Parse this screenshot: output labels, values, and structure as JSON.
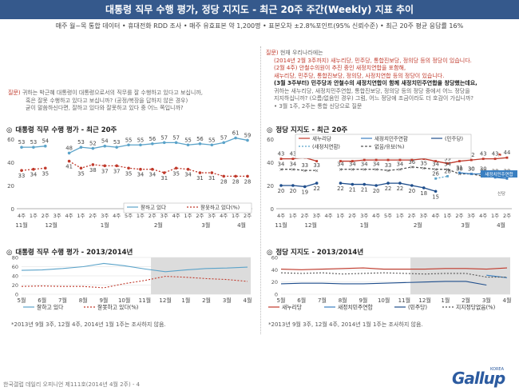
{
  "header": {
    "title": "대통령 직무 수행 평가, 정당 지지도 - 최근 20주 주간(Weekly) 지표 추이"
  },
  "subtitle": "매주 월~목 통합 데이터 • 휴대전화 RDD 조사 • 매주 유효표본 약 1,200명 • 표본오차 ±2.8%포인트(95% 신뢰수준) • 최근 20주 평균 응답률 16%",
  "left_question": {
    "tag": "질문)",
    "lines": [
      "귀하는 박근혜 대통령이 대통령으로서의 직무를 잘 수행하고 있다고 보십니까,",
      "혹은 잘못 수행하고 있다고 보십니까? (공정/복장을 답하지 않은 경우)",
      "굳이 말씀하신다면, 잘하고 있다와 잘못하고 있다 중 어느 쪽입니까?"
    ]
  },
  "right_question": {
    "tag": "질문)",
    "lines": [
      {
        "text": "현재 우리나라에는",
        "style": "normal"
      },
      {
        "text": "(2014년 2월 3주까지) 새누리당, 민주당, 통합진보당, 정의당 등의 정당이 있습니다.",
        "style": "red"
      },
      {
        "text": "(2월 4주) 안철수의원이 추진 중인 새정치연합을 포함해,",
        "style": "red"
      },
      {
        "text": "새누리당, 민주당, 통합진보당, 정의당, 사정치연합 등의 정당이 있습니다.",
        "style": "red"
      },
      {
        "text": "(3월 3주부터) 민주당과 안철수의 새정치연합이 함께 새정치민주연합을 창당했는데요,",
        "style": "dark"
      },
      {
        "text": "귀하는 새누리당, 새정치민주연합, 통합진보당, 정의당 등의 정당 중에서 어느 정당을",
        "style": "normal"
      },
      {
        "text": "지지하십니까? (으름/없음인 경우) 그럼, 어느 정당에 조금이라도 더 호감이 가십니까?",
        "style": "normal"
      },
      {
        "text": "• 3월 1주, 2주는 통합 신당으로 질문",
        "style": "normal"
      }
    ]
  },
  "left_top": {
    "title": "대통령 직무 수행 평가 - 최근 20주",
    "marker": "◎",
    "legend": [
      "잘하고 있다",
      "잘못하고 있다(%)"
    ]
  },
  "right_top": {
    "title": "정당 지지도 - 최근 20주",
    "marker": "◎",
    "legend": [
      "새누리당",
      "새정치민주연합",
      "(민주당)",
      "(새정치연합)",
      "없음/유보(%)"
    ],
    "annotation": "새정치민주연합",
    "flag_label": "신당"
  },
  "left_bottom": {
    "title": "대통령 직무 수행 평가 - 2013/2014년",
    "marker": "◎",
    "legend": [
      "잘하고 있다",
      "잘못하고 있다(%)"
    ],
    "note": "*2013년 9월 3주, 12월 4주, 2014년 1월 1주는 조사하지 않음."
  },
  "right_bottom": {
    "title": "정당 지지도 - 2013/2014년",
    "marker": "◎",
    "legend": [
      "새누리당",
      "새정치민주연합",
      "(민주당)",
      "지지정당없음(%)"
    ],
    "note": "*2013년 9월 3주, 12월 4주, 2014년 1월 1주는 조사하지 않음."
  },
  "footer": "한국갤럽 데일리 오피니언 제111호(2014년 4월 2주) - 4",
  "logo": {
    "text": "Gallup",
    "sub": "KOREA"
  },
  "colors": {
    "header_bg": "#35598c",
    "positive": "#5ba3c9",
    "negative": "#c0392b",
    "saenuri": "#c0392b",
    "npad": "#3a7fc1",
    "dp": "#1f4e8c",
    "npa": "#5ba3c9",
    "none": "#555555",
    "shade": "#dcdcdc"
  },
  "chart_data": [
    {
      "type": "line",
      "title": "대통령 직무 수행 평가 - 최근 20주",
      "x": [
        "4주",
        "1주",
        "2주",
        "3주",
        "4주",
        "1주",
        "2주",
        "3주",
        "4주",
        "5주",
        "1주",
        "2주",
        "3주",
        "4주",
        "1주",
        "2주",
        "3주",
        "4주",
        "1주",
        "2주"
      ],
      "period_labels": [
        "11월",
        "12월",
        "1월",
        "2월",
        "3월",
        "4월"
      ],
      "series": [
        {
          "name": "잘하고 있다",
          "values": [
            53,
            53,
            54,
            null,
            48,
            53,
            52,
            54,
            53,
            55,
            55,
            56,
            57,
            57,
            55,
            56,
            55,
            57,
            61,
            59
          ]
        },
        {
          "name": "잘못하고 있다(%)",
          "values": [
            33,
            34,
            35,
            null,
            41,
            35,
            38,
            37,
            37,
            35,
            34,
            34,
            31,
            35,
            34,
            31,
            31,
            28,
            28,
            28
          ]
        }
      ],
      "ylim": [
        0,
        60
      ],
      "yticks": [
        0,
        20,
        40,
        60
      ],
      "grid": false
    },
    {
      "type": "line",
      "title": "정당 지지도 - 최근 20주",
      "x": [
        "4주",
        "1주",
        "2주",
        "3주",
        "4주",
        "1주",
        "2주",
        "3주",
        "4주",
        "5주",
        "1주",
        "2주",
        "3주",
        "4주",
        "1주",
        "2주",
        "3주",
        "4주",
        "1주",
        "2주"
      ],
      "period_labels": [
        "11월",
        "12월",
        "1월",
        "2월",
        "3월",
        "4월"
      ],
      "series": [
        {
          "name": "새누리당",
          "values": [
            43,
            43,
            44,
            41,
            null,
            41,
            41,
            42,
            42,
            42,
            42,
            42,
            43,
            41,
            39,
            41,
            42,
            43,
            43,
            44
          ]
        },
        {
          "name": "없음/유보(%)",
          "values": [
            34,
            34,
            33,
            33,
            null,
            34,
            34,
            34,
            34,
            33,
            34,
            36,
            35,
            34,
            34,
            30,
            30,
            28,
            28,
            28
          ]
        },
        {
          "name": "(민주당)",
          "values": [
            20,
            20,
            19,
            22,
            null,
            22,
            21,
            21,
            20,
            22,
            22,
            20,
            18,
            15,
            null,
            null,
            null,
            null,
            null,
            null
          ]
        },
        {
          "name": "(새정치연합)",
          "values": [
            null,
            null,
            null,
            null,
            null,
            null,
            null,
            null,
            null,
            null,
            null,
            null,
            null,
            26,
            28,
            null,
            null,
            null,
            null,
            null
          ]
        },
        {
          "name": "새정치민주연합",
          "values": [
            null,
            null,
            null,
            null,
            null,
            null,
            null,
            null,
            null,
            null,
            null,
            null,
            null,
            null,
            null,
            31,
            30,
            30,
            27,
            26
          ]
        }
      ],
      "ylim": [
        0,
        60
      ],
      "yticks": [
        0,
        20,
        40,
        60
      ],
      "grid": false
    },
    {
      "type": "line",
      "title": "대통령 직무 수행 평가 - 2013/2014년",
      "x": [
        "5월",
        "6월",
        "7월",
        "8월",
        "9월",
        "10월",
        "11월",
        "12월",
        "1월",
        "2월",
        "3월",
        "4월"
      ],
      "series": [
        {
          "name": "잘하고 있다",
          "values": [
            52,
            53,
            56,
            60,
            67,
            62,
            55,
            49,
            53,
            56,
            57,
            59
          ]
        },
        {
          "name": "잘못하고 있다(%)",
          "values": [
            17,
            18,
            17,
            17,
            14,
            23,
            30,
            39,
            37,
            34,
            32,
            28
          ]
        }
      ],
      "ylim": [
        0,
        80
      ],
      "yticks": [
        0,
        20,
        40,
        60,
        80
      ],
      "grid": true
    },
    {
      "type": "line",
      "title": "정당 지지도 - 2013/2014년",
      "x": [
        "5월",
        "6월",
        "7월",
        "8월",
        "9월",
        "10월",
        "11월",
        "12월",
        "1월",
        "2월",
        "3월",
        "4월"
      ],
      "series": [
        {
          "name": "새누리당",
          "values": [
            41,
            40,
            41,
            42,
            43,
            41,
            41,
            41,
            42,
            42,
            41,
            43
          ]
        },
        {
          "name": "새정치민주연합",
          "values": [
            null,
            null,
            null,
            null,
            null,
            null,
            null,
            null,
            null,
            null,
            31,
            27
          ]
        },
        {
          "name": "(민주당)",
          "values": [
            17,
            18,
            18,
            17,
            17,
            18,
            19,
            20,
            21,
            21,
            15,
            null
          ]
        },
        {
          "name": "지지정당없음(%)",
          "values": [
            35,
            34,
            35,
            33,
            34,
            35,
            34,
            33,
            34,
            34,
            28,
            28
          ]
        }
      ],
      "ylim": [
        0,
        60
      ],
      "yticks": [
        0,
        20,
        40,
        60
      ],
      "grid": true
    }
  ]
}
